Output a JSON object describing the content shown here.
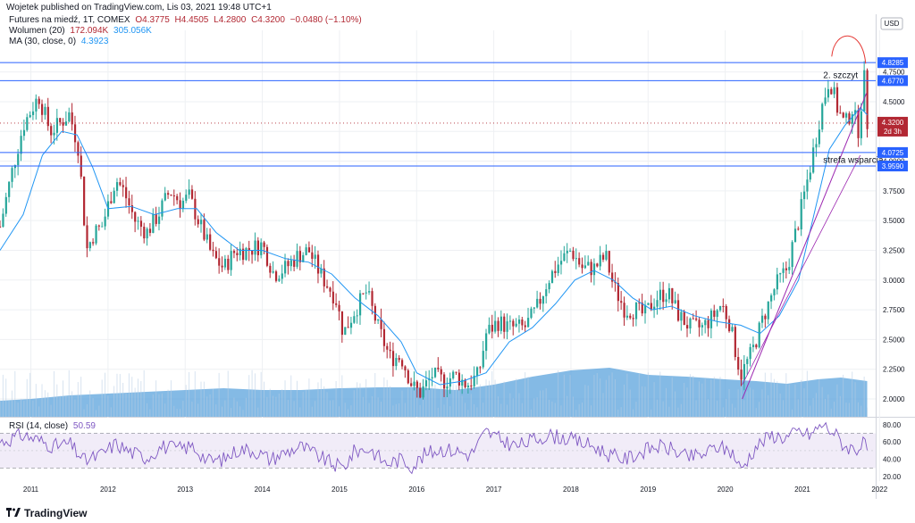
{
  "header": {
    "published_line": "Wojetek published on TradingView.com, Lis 03, 2021 19:48 UTC+1"
  },
  "legend": {
    "instrument": "Futures na miedź, 1T, COMEX",
    "open": "O4.3775",
    "high": "H4.4505",
    "low": "L4.2800",
    "close": "C4.3200",
    "change": "−0.0480 (−1.10%)",
    "volume_label": "Wolumen (20)",
    "volume_value": "172.094K",
    "volume_ma": "305.056K",
    "ma_label": "MA (30, close, 0)",
    "ma_value": "4.3923",
    "rsi_label": "RSI (14, close)",
    "rsi_value": "50.59"
  },
  "annotations": {
    "peak_label": "2. szczyt",
    "support_label": "strefa wsparcia"
  },
  "price_axis": {
    "currency": "USD",
    "current_price": "4.3200",
    "current_countdown": "2d 3h",
    "level_tags": [
      "4.8285",
      "4.6770",
      "4.0725",
      "3.9590"
    ]
  },
  "footer": {
    "brand": "TradingView"
  },
  "colors": {
    "up": "#26a69a",
    "down": "#b22833",
    "ma": "#2196f3",
    "volume": "#5ba3dc",
    "level_line": "#2962ff",
    "rsi": "#7e57c2",
    "trend": "#9c27b0",
    "peak_arc": "#e53935"
  },
  "chart_data": [
    {
      "type": "candlestick",
      "title": "Futures na miedź, 1T, COMEX",
      "currency": "USD",
      "x_ticks": [
        "2011",
        "2012",
        "2013",
        "2014",
        "2015",
        "2016",
        "2017",
        "2018",
        "2019",
        "2020",
        "2021",
        "2022"
      ],
      "x_range": [
        2010.6,
        2021.95
      ],
      "y_ticks": [
        2.0,
        2.25,
        2.5,
        2.75,
        3.0,
        3.25,
        3.5,
        3.75,
        4.0,
        4.25,
        4.5,
        4.75
      ],
      "ylim": [
        1.85,
        5.1
      ],
      "horizontal_levels": [
        4.8285,
        4.677,
        4.0725,
        3.959
      ],
      "current_price": 4.32,
      "price_path": [
        [
          2010.6,
          3.45
        ],
        [
          2010.75,
          3.9
        ],
        [
          2010.9,
          4.3
        ],
        [
          2011.1,
          4.55
        ],
        [
          2011.25,
          4.25
        ],
        [
          2011.35,
          4.3
        ],
        [
          2011.5,
          4.4
        ],
        [
          2011.62,
          4.1
        ],
        [
          2011.72,
          3.25
        ],
        [
          2011.82,
          3.4
        ],
        [
          2011.92,
          3.45
        ],
        [
          2012.1,
          3.85
        ],
        [
          2012.2,
          3.75
        ],
        [
          2012.35,
          3.5
        ],
        [
          2012.5,
          3.4
        ],
        [
          2012.65,
          3.55
        ],
        [
          2012.8,
          3.75
        ],
        [
          2012.95,
          3.65
        ],
        [
          2013.05,
          3.7
        ],
        [
          2013.2,
          3.45
        ],
        [
          2013.35,
          3.2
        ],
        [
          2013.5,
          3.1
        ],
        [
          2013.65,
          3.25
        ],
        [
          2013.8,
          3.25
        ],
        [
          2014.0,
          3.3
        ],
        [
          2014.15,
          3.05
        ],
        [
          2014.3,
          3.1
        ],
        [
          2014.45,
          3.2
        ],
        [
          2014.6,
          3.25
        ],
        [
          2014.75,
          3.05
        ],
        [
          2014.95,
          2.85
        ],
        [
          2015.05,
          2.55
        ],
        [
          2015.2,
          2.75
        ],
        [
          2015.35,
          2.9
        ],
        [
          2015.5,
          2.6
        ],
        [
          2015.65,
          2.35
        ],
        [
          2015.8,
          2.35
        ],
        [
          2015.95,
          2.1
        ],
        [
          2016.05,
          2.05
        ],
        [
          2016.2,
          2.2
        ],
        [
          2016.35,
          2.15
        ],
        [
          2016.5,
          2.2
        ],
        [
          2016.65,
          2.12
        ],
        [
          2016.8,
          2.2
        ],
        [
          2016.9,
          2.55
        ],
        [
          2017.05,
          2.65
        ],
        [
          2017.2,
          2.6
        ],
        [
          2017.4,
          2.6
        ],
        [
          2017.55,
          2.75
        ],
        [
          2017.7,
          3.0
        ],
        [
          2017.85,
          3.15
        ],
        [
          2018.0,
          3.25
        ],
        [
          2018.15,
          3.1
        ],
        [
          2018.3,
          3.1
        ],
        [
          2018.45,
          3.2
        ],
        [
          2018.55,
          2.95
        ],
        [
          2018.7,
          2.75
        ],
        [
          2018.85,
          2.75
        ],
        [
          2018.95,
          2.7
        ],
        [
          2019.1,
          2.85
        ],
        [
          2019.25,
          2.9
        ],
        [
          2019.4,
          2.7
        ],
        [
          2019.55,
          2.6
        ],
        [
          2019.7,
          2.6
        ],
        [
          2019.85,
          2.7
        ],
        [
          2019.95,
          2.8
        ],
        [
          2020.05,
          2.65
        ],
        [
          2020.2,
          2.2
        ],
        [
          2020.35,
          2.4
        ],
        [
          2020.5,
          2.7
        ],
        [
          2020.65,
          2.95
        ],
        [
          2020.8,
          3.1
        ],
        [
          2020.95,
          3.5
        ],
        [
          2021.1,
          3.95
        ],
        [
          2021.25,
          4.45
        ],
        [
          2021.35,
          4.7
        ],
        [
          2021.45,
          4.45
        ],
        [
          2021.55,
          4.3
        ],
        [
          2021.65,
          4.45
        ],
        [
          2021.72,
          4.25
        ],
        [
          2021.8,
          4.7
        ],
        [
          2021.84,
          4.32
        ]
      ],
      "moving_average": {
        "name": "MA (30, close, 0)",
        "path": [
          [
            2010.6,
            3.25
          ],
          [
            2010.9,
            3.55
          ],
          [
            2011.15,
            4.05
          ],
          [
            2011.4,
            4.25
          ],
          [
            2011.6,
            4.22
          ],
          [
            2011.8,
            3.95
          ],
          [
            2012.0,
            3.6
          ],
          [
            2012.3,
            3.62
          ],
          [
            2012.6,
            3.55
          ],
          [
            2012.9,
            3.6
          ],
          [
            2013.15,
            3.6
          ],
          [
            2013.4,
            3.4
          ],
          [
            2013.7,
            3.25
          ],
          [
            2014.0,
            3.25
          ],
          [
            2014.3,
            3.18
          ],
          [
            2014.6,
            3.15
          ],
          [
            2014.9,
            3.05
          ],
          [
            2015.2,
            2.85
          ],
          [
            2015.5,
            2.7
          ],
          [
            2015.8,
            2.48
          ],
          [
            2016.0,
            2.22
          ],
          [
            2016.3,
            2.12
          ],
          [
            2016.6,
            2.15
          ],
          [
            2016.9,
            2.22
          ],
          [
            2017.2,
            2.48
          ],
          [
            2017.5,
            2.6
          ],
          [
            2017.8,
            2.8
          ],
          [
            2018.05,
            3.0
          ],
          [
            2018.3,
            3.08
          ],
          [
            2018.55,
            3.0
          ],
          [
            2018.8,
            2.85
          ],
          [
            2019.05,
            2.75
          ],
          [
            2019.3,
            2.78
          ],
          [
            2019.6,
            2.7
          ],
          [
            2019.9,
            2.65
          ],
          [
            2020.2,
            2.62
          ],
          [
            2020.45,
            2.55
          ],
          [
            2020.7,
            2.7
          ],
          [
            2020.95,
            3.0
          ],
          [
            2021.15,
            3.55
          ],
          [
            2021.35,
            4.1
          ],
          [
            2021.55,
            4.3
          ],
          [
            2021.75,
            4.45
          ],
          [
            2021.84,
            4.39
          ]
        ]
      },
      "volume": {
        "name": "Wolumen (20)",
        "last": "172.094K",
        "ma": "305.056K",
        "area_path": [
          [
            2010.6,
            0.18
          ],
          [
            2011.0,
            0.2
          ],
          [
            2011.5,
            0.24
          ],
          [
            2012.0,
            0.26
          ],
          [
            2012.5,
            0.28
          ],
          [
            2013.0,
            0.3
          ],
          [
            2013.5,
            0.32
          ],
          [
            2014.0,
            0.3
          ],
          [
            2014.5,
            0.3
          ],
          [
            2015.0,
            0.32
          ],
          [
            2015.5,
            0.33
          ],
          [
            2016.0,
            0.33
          ],
          [
            2016.5,
            0.3
          ],
          [
            2017.0,
            0.36
          ],
          [
            2017.5,
            0.45
          ],
          [
            2018.0,
            0.52
          ],
          [
            2018.5,
            0.55
          ],
          [
            2019.0,
            0.47
          ],
          [
            2019.5,
            0.45
          ],
          [
            2020.0,
            0.42
          ],
          [
            2020.4,
            0.4
          ],
          [
            2020.8,
            0.37
          ],
          [
            2021.2,
            0.42
          ],
          [
            2021.5,
            0.44
          ],
          [
            2021.84,
            0.4
          ]
        ]
      }
    },
    {
      "type": "line",
      "title": "RSI (14, close)",
      "last_value": 50.59,
      "y_ticks": [
        20.0,
        40.0,
        60.0,
        80.0
      ],
      "ylim": [
        15,
        88
      ],
      "bands": [
        30,
        70
      ],
      "path": [
        [
          2010.6,
          60
        ],
        [
          2010.9,
          68
        ],
        [
          2011.1,
          62
        ],
        [
          2011.3,
          55
        ],
        [
          2011.5,
          58
        ],
        [
          2011.7,
          38
        ],
        [
          2011.9,
          45
        ],
        [
          2012.1,
          58
        ],
        [
          2012.3,
          48
        ],
        [
          2012.5,
          42
        ],
        [
          2012.7,
          55
        ],
        [
          2012.9,
          52
        ],
        [
          2013.1,
          55
        ],
        [
          2013.3,
          38
        ],
        [
          2013.5,
          40
        ],
        [
          2013.7,
          52
        ],
        [
          2013.9,
          50
        ],
        [
          2014.1,
          40
        ],
        [
          2014.3,
          48
        ],
        [
          2014.5,
          55
        ],
        [
          2014.7,
          45
        ],
        [
          2014.9,
          35
        ],
        [
          2015.05,
          30
        ],
        [
          2015.2,
          50
        ],
        [
          2015.4,
          52
        ],
        [
          2015.6,
          35
        ],
        [
          2015.8,
          40
        ],
        [
          2015.95,
          32
        ],
        [
          2016.1,
          45
        ],
        [
          2016.3,
          52
        ],
        [
          2016.5,
          50
        ],
        [
          2016.7,
          45
        ],
        [
          2016.9,
          72
        ],
        [
          2017.1,
          62
        ],
        [
          2017.3,
          55
        ],
        [
          2017.5,
          62
        ],
        [
          2017.7,
          68
        ],
        [
          2017.9,
          65
        ],
        [
          2018.1,
          60
        ],
        [
          2018.3,
          55
        ],
        [
          2018.5,
          45
        ],
        [
          2018.7,
          40
        ],
        [
          2018.9,
          48
        ],
        [
          2019.1,
          55
        ],
        [
          2019.3,
          52
        ],
        [
          2019.5,
          42
        ],
        [
          2019.7,
          45
        ],
        [
          2019.9,
          55
        ],
        [
          2020.1,
          48
        ],
        [
          2020.2,
          28
        ],
        [
          2020.4,
          55
        ],
        [
          2020.6,
          68
        ],
        [
          2020.8,
          65
        ],
        [
          2020.95,
          72
        ],
        [
          2021.1,
          68
        ],
        [
          2021.25,
          80
        ],
        [
          2021.4,
          72
        ],
        [
          2021.55,
          55
        ],
        [
          2021.7,
          52
        ],
        [
          2021.8,
          58
        ],
        [
          2021.84,
          50.59
        ]
      ]
    }
  ]
}
